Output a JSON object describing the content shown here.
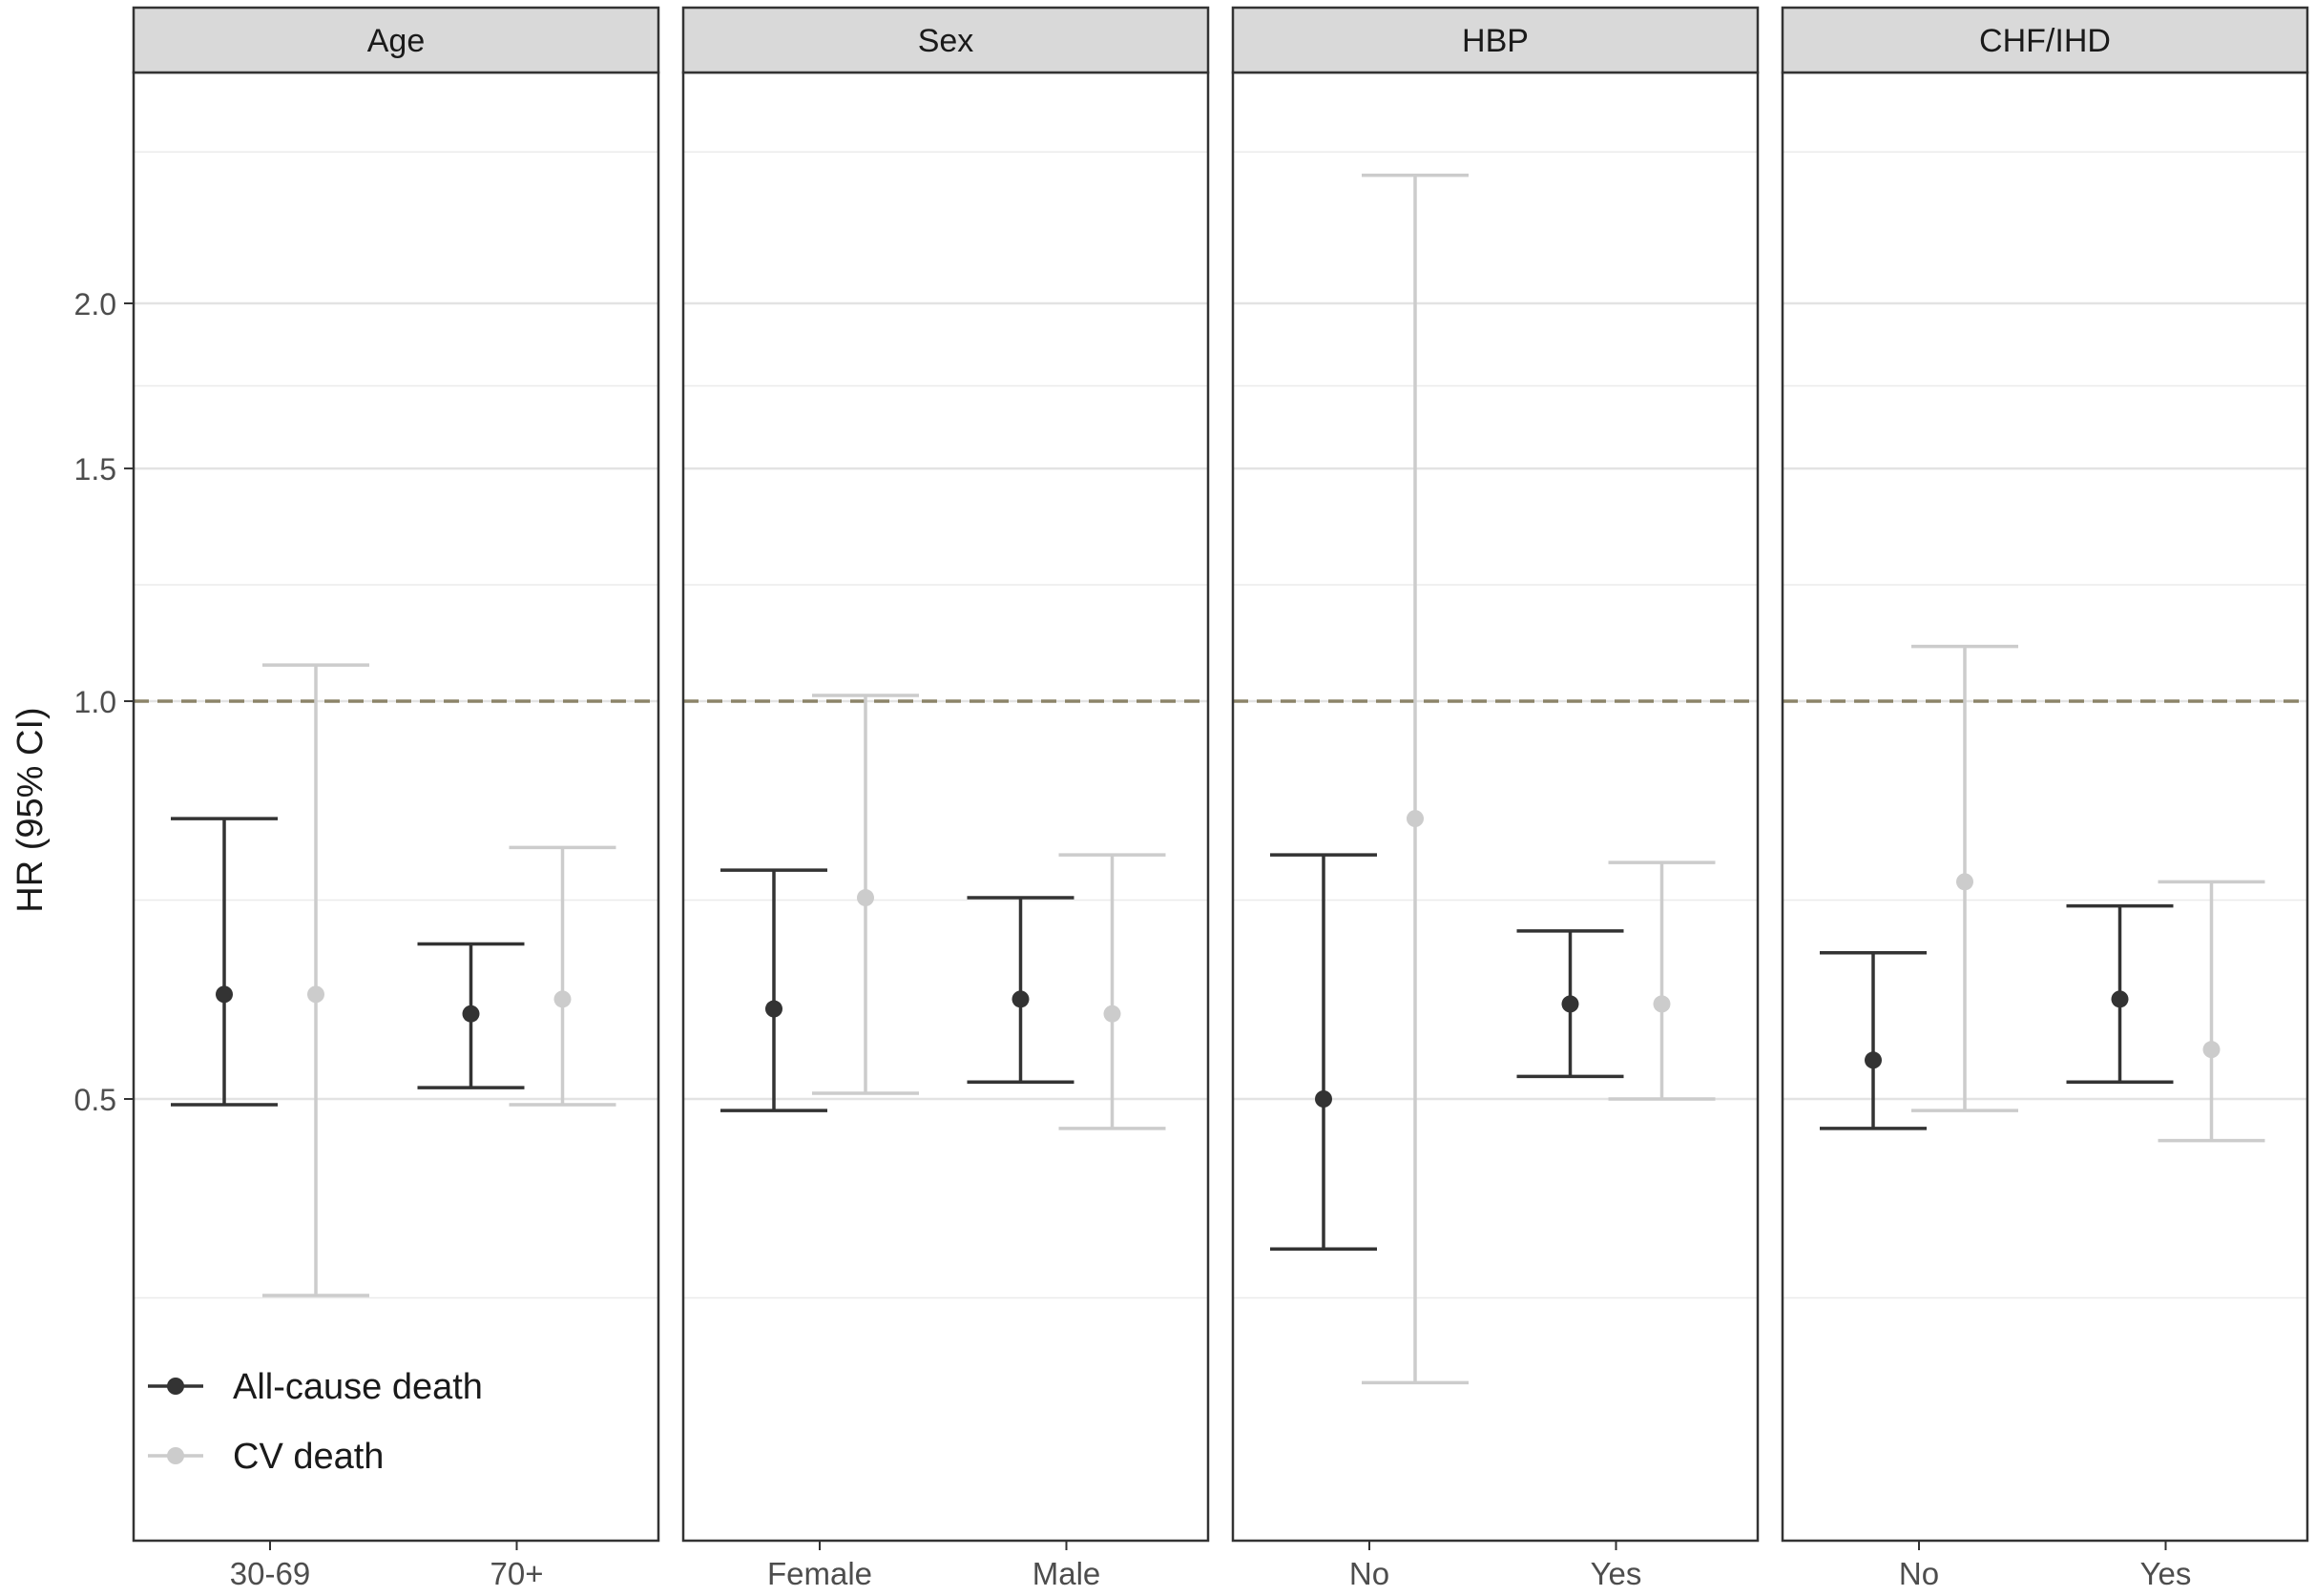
{
  "chart_data": {
    "type": "errorbar",
    "ylabel": "HR (95% CI)",
    "yscale": "log",
    "yticks": [
      0.5,
      1.0,
      1.5,
      2.0
    ],
    "ytick_labels": [
      "0.5",
      "1.0",
      "1.5",
      "2.0"
    ],
    "reference_line": 1.0,
    "grid": true,
    "legend_position": "bottom-left (inside first panel)",
    "colors": {
      "All-cause death": "#333333",
      "CV death": "#cccccc",
      "reference_line": "#8c8468",
      "strip_bg": "#d9d9d9"
    },
    "series_names": [
      "All-cause death",
      "CV death"
    ],
    "panels": [
      {
        "title": "Age",
        "categories": [
          "30-69",
          "70+"
        ],
        "series": [
          {
            "name": "All-cause death",
            "estimate": [
              0.6,
              0.58
            ],
            "lower": [
              0.495,
              0.51
            ],
            "upper": [
              0.815,
              0.655
            ]
          },
          {
            "name": "CV death",
            "estimate": [
              0.6,
              0.595
            ],
            "lower": [
              0.355,
              0.495
            ],
            "upper": [
              1.065,
              0.775
            ]
          }
        ]
      },
      {
        "title": "Sex",
        "categories": [
          "Female",
          "Male"
        ],
        "series": [
          {
            "name": "All-cause death",
            "estimate": [
              0.585,
              0.595
            ],
            "lower": [
              0.49,
              0.515
            ],
            "upper": [
              0.745,
              0.71
            ]
          },
          {
            "name": "CV death",
            "estimate": [
              0.71,
              0.58
            ],
            "lower": [
              0.505,
              0.475
            ],
            "upper": [
              1.01,
              0.765
            ]
          }
        ]
      },
      {
        "title": "HBP",
        "categories": [
          "No",
          "Yes"
        ],
        "series": [
          {
            "name": "All-cause death",
            "estimate": [
              0.5,
              0.59
            ],
            "lower": [
              0.385,
              0.52
            ],
            "upper": [
              0.765,
              0.67
            ]
          },
          {
            "name": "CV death",
            "estimate": [
              0.815,
              0.59
            ],
            "lower": [
              0.305,
              0.5
            ],
            "upper": [
              2.5,
              0.755
            ]
          }
        ]
      },
      {
        "title": "CHF/IHD",
        "categories": [
          "No",
          "Yes"
        ],
        "series": [
          {
            "name": "All-cause death",
            "estimate": [
              0.535,
              0.595
            ],
            "lower": [
              0.475,
              0.515
            ],
            "upper": [
              0.645,
              0.7
            ]
          },
          {
            "name": "CV death",
            "estimate": [
              0.73,
              0.545
            ],
            "lower": [
              0.49,
              0.465
            ],
            "upper": [
              1.1,
              0.73
            ]
          }
        ]
      }
    ]
  }
}
